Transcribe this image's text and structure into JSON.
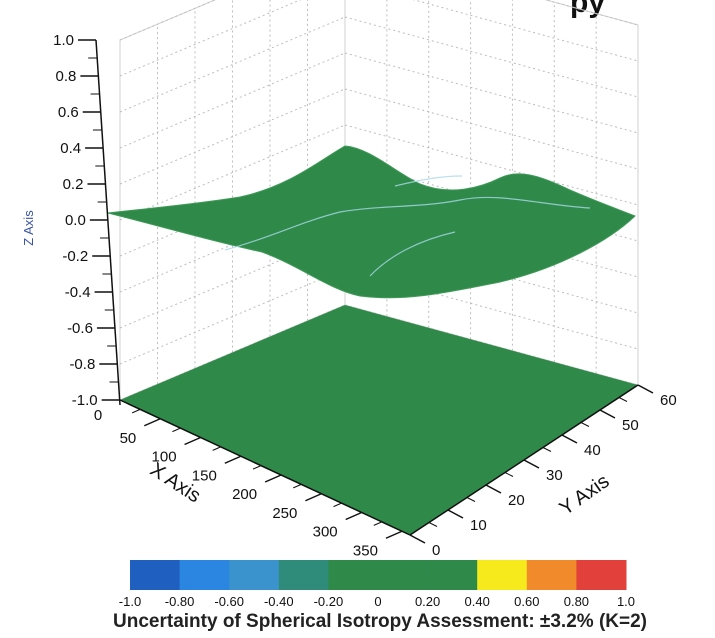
{
  "chart_data": {
    "type": "surface",
    "title_visible": "py",
    "xlabel": "X Axis",
    "ylabel": "Y Axis",
    "zlabel": "Z Axis",
    "x_ticks": [
      "50",
      "100",
      "150",
      "200",
      "250",
      "300",
      "350"
    ],
    "y_ticks": [
      "0",
      "10",
      "20",
      "30",
      "40",
      "50",
      "60"
    ],
    "z_ticks": [
      "1.0",
      "0.8",
      "0.6",
      "0.4",
      "0.2",
      "0.0",
      "-0.2",
      "-0.4",
      "-0.6",
      "-0.8",
      "-1.0"
    ],
    "x_corner_tick": "0",
    "xlim": [
      0,
      360
    ],
    "ylim": [
      0,
      60
    ],
    "zlim": [
      -1.0,
      1.0
    ],
    "grid": true,
    "surface_color": "#2f8a4a",
    "floor_color": "#2f8a4a",
    "surface_z_range": [
      -0.4,
      0.45
    ],
    "colorbar": {
      "labels": [
        "-1.0",
        "-0.80",
        "-0.60",
        "-0.40",
        "-0.20",
        "0",
        "0.20",
        "0.40",
        "0.60",
        "0.80",
        "1.0"
      ],
      "colors": [
        "#1f5fbf",
        "#2a86e0",
        "#3a93cc",
        "#2f8c7a",
        "#2f8a4a",
        "#2f8a4a",
        "#2f8a4a",
        "#f7ea1c",
        "#f08a2a",
        "#e2403a"
      ]
    },
    "caption": "Uncertainty of Spherical Isotropy Assessment: ±3.2% (K=2)"
  }
}
